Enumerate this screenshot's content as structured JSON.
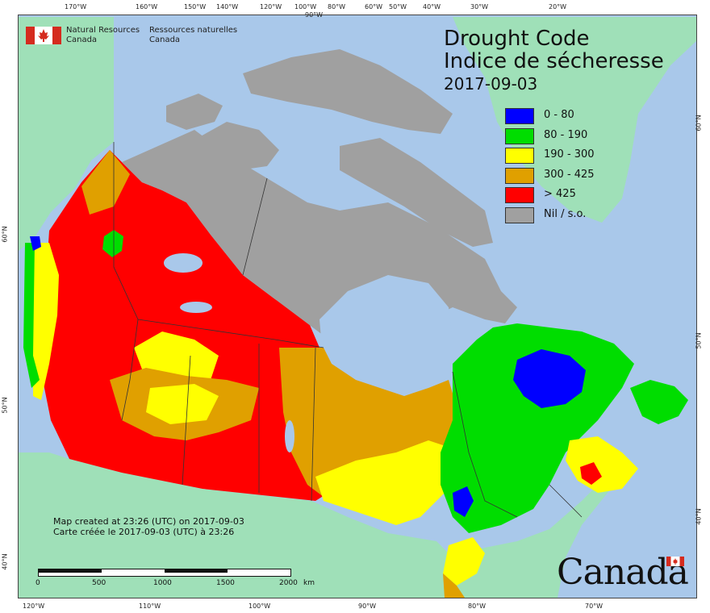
{
  "agency": {
    "name_en_line1": "Natural Resources",
    "name_en_line2": "Canada",
    "name_fr_line1": "Ressources naturelles",
    "name_fr_line2": "Canada"
  },
  "title": {
    "en": "Drought Code",
    "fr": "Indice de sécheresse",
    "date": "2017-09-03"
  },
  "legend": [
    {
      "label": "0 - 80",
      "color": "#0000ff"
    },
    {
      "label": "80 - 190",
      "color": "#00dd00"
    },
    {
      "label": "190 - 300",
      "color": "#ffff00"
    },
    {
      "label": "300 - 425",
      "color": "#e0a000"
    },
    {
      "label": "> 425",
      "color": "#ff0000"
    },
    {
      "label": "Nil / s.o.",
      "color": "#a0a0a0"
    }
  ],
  "credit": {
    "en": "Map created at 23:26 (UTC) on 2017-09-03",
    "fr": "Carte créée le 2017-09-03 (UTC) à 23:26"
  },
  "scale": {
    "labels": [
      "0",
      "500",
      "1000",
      "1500",
      "2000"
    ],
    "unit": "km"
  },
  "top_ticks": [
    "170°W",
    "160°W",
    "150°W",
    "140°W",
    "120°W",
    "100°W",
    "90°W",
    "80°W",
    "60°W",
    "50°W",
    "40°W",
    "30°W",
    "20°W"
  ],
  "bottom_ticks": [
    "120°W",
    "110°W",
    "100°W",
    "90°W",
    "80°W",
    "70°W"
  ],
  "left_ticks": [
    "60°N",
    "50°N",
    "40°N"
  ],
  "right_ticks": [
    "60°N",
    "50°N",
    "40°N"
  ],
  "colors": {
    "ocean": "#a9c8ea",
    "foreign_land": "#9fe0b8",
    "nil": "#a0a0a0",
    "border": "#333333"
  },
  "wordmark": "Canada"
}
